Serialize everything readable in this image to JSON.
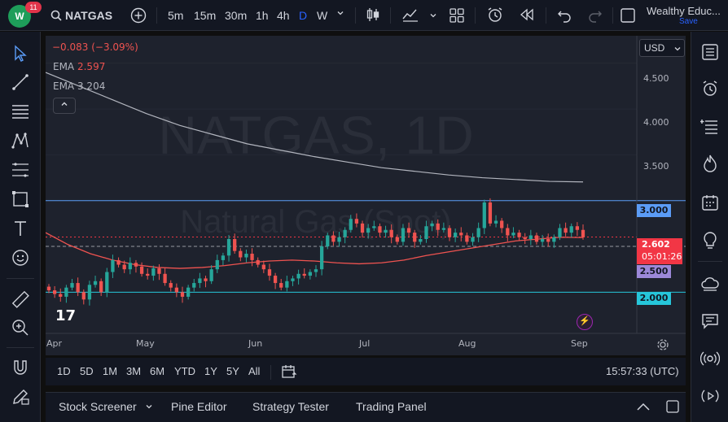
{
  "app": {
    "notification_count": "11",
    "logo_text": "W"
  },
  "toolbar": {
    "symbol": "NATGAS",
    "intervals": [
      "5m",
      "15m",
      "30m",
      "1h",
      "4h",
      "D",
      "W"
    ],
    "active_interval": "D",
    "account_name": "Wealthy Educ...",
    "save_label": "Save"
  },
  "legend": {
    "change": "−0.083 (−3.09%)",
    "ema1_label": "EMA",
    "ema1_value": "2.597",
    "ema2_label": "EMA",
    "ema2_value": "3.204"
  },
  "watermark": {
    "line1": "NATGAS, 1D",
    "line2": "Natural Gas (Spot)"
  },
  "price_axis": {
    "currency": "USD",
    "ticks": [
      "4.500",
      "4.000",
      "3.500"
    ],
    "tag_3000": "3.000",
    "tag_current": "2.602",
    "tag_countdown": "05:01:26",
    "tag_2500": "2.500",
    "tag_2000": "2.000"
  },
  "time_axis": {
    "labels": [
      "Apr",
      "May",
      "Jun",
      "Jul",
      "Aug",
      "Sep"
    ]
  },
  "range_bar": {
    "ranges": [
      "1D",
      "5D",
      "1M",
      "3M",
      "6M",
      "YTD",
      "1Y",
      "5Y",
      "All"
    ],
    "clock": "15:57:33 (UTC)"
  },
  "panels": {
    "stock_screener": "Stock Screener",
    "pine_editor": "Pine Editor",
    "strategy_tester": "Strategy Tester",
    "trading_panel": "Trading Panel"
  },
  "colors": {
    "up": "#26a69a",
    "down": "#ef5350",
    "ema_fast": "#ef5350",
    "ema_slow": "#b2b5be",
    "level_line": "#5b9cf6",
    "cyan_line": "#26c6da",
    "tag_current": "#f23645",
    "tag_2500": "#9c88d8"
  },
  "chart_data": {
    "type": "candlestick",
    "symbol": "NATGAS",
    "ylim": [
      1.55,
      4.8
    ],
    "x_labels": [
      "Apr",
      "May",
      "Jun",
      "Jul",
      "Aug",
      "Sep"
    ],
    "horizontal_levels": [
      3.0,
      2.5,
      2.0
    ],
    "current_price": 2.602,
    "ema_fast_last": 2.597,
    "ema_slow_last": 3.204,
    "closes": [
      2.02,
      1.98,
      1.95,
      2.05,
      2.1,
      2.0,
      1.92,
      2.08,
      2.12,
      2.0,
      2.22,
      2.35,
      2.3,
      2.25,
      2.32,
      2.28,
      2.2,
      2.18,
      2.26,
      2.2,
      2.1,
      2.05,
      2.0,
      1.95,
      2.05,
      2.1,
      2.15,
      2.12,
      2.25,
      2.35,
      2.4,
      2.58,
      2.45,
      2.38,
      2.42,
      2.35,
      2.3,
      2.25,
      2.18,
      2.1,
      2.05,
      2.12,
      2.15,
      2.2,
      2.18,
      2.22,
      2.25,
      2.5,
      2.62,
      2.55,
      2.6,
      2.68,
      2.8,
      2.75,
      2.65,
      2.7,
      2.72,
      2.65,
      2.68,
      2.6,
      2.55,
      2.7,
      2.65,
      2.55,
      2.58,
      2.72,
      2.75,
      2.68,
      2.7,
      2.6,
      2.65,
      2.62,
      2.55,
      2.6,
      2.7,
      2.98,
      2.75,
      2.78,
      2.7,
      2.62,
      2.65,
      2.6,
      2.58,
      2.62,
      2.55,
      2.58,
      2.55,
      2.6,
      2.7,
      2.65,
      2.72,
      2.68,
      2.602
    ],
    "ema_fast": [
      2.65,
      2.52,
      2.42,
      2.35,
      2.3,
      2.27,
      2.26,
      2.27,
      2.29,
      2.32,
      2.34,
      2.35,
      2.34,
      2.32,
      2.31,
      2.32,
      2.35,
      2.4,
      2.44,
      2.48,
      2.52,
      2.56,
      2.58,
      2.6,
      2.597
    ],
    "ema_slow": [
      4.4,
      4.25,
      4.1,
      3.95,
      3.82,
      3.72,
      3.62,
      3.55,
      3.48,
      3.42,
      3.36,
      3.32,
      3.28,
      3.25,
      3.23,
      3.21,
      3.204
    ]
  }
}
